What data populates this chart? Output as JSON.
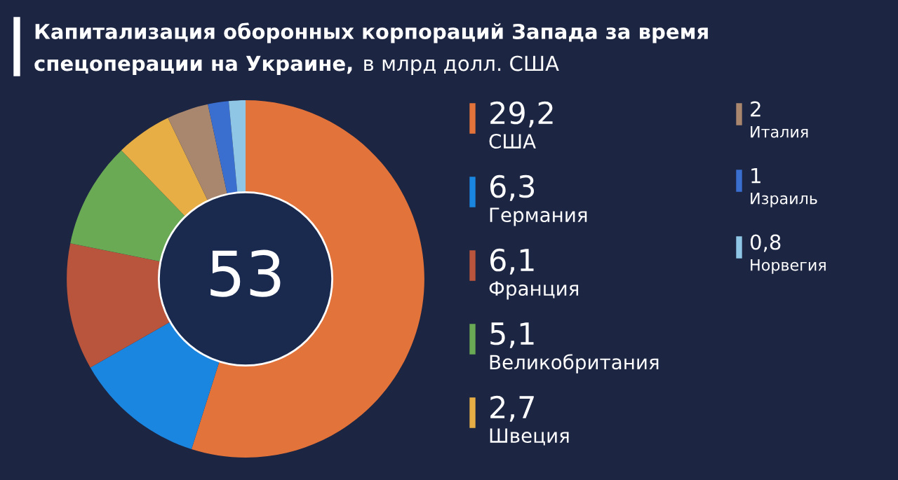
{
  "chart_data": {
    "type": "donut",
    "title": "Капитализация оборонных корпораций Запада за время\nспецоперации на Украине,",
    "subtitle": "в млрд долл. США",
    "categories": [
      "США",
      "Германия",
      "Франция",
      "Великобритания",
      "Швеция",
      "Италия",
      "Израиль",
      "Норвегия"
    ],
    "values": [
      29.2,
      6.3,
      6.1,
      5.1,
      2.7,
      2,
      1,
      0.8
    ],
    "value_labels": [
      "29,2",
      "6,3",
      "6,1",
      "5,1",
      "2,7",
      "2",
      "1",
      "0,8"
    ],
    "colors": [
      "#e2733a",
      "#1a86e0",
      "#b9553c",
      "#6aaa55",
      "#e6ae45",
      "#a9876e",
      "#3a6fd0",
      "#8fc6e6"
    ],
    "annotations": [
      "53"
    ],
    "legend": "right"
  }
}
